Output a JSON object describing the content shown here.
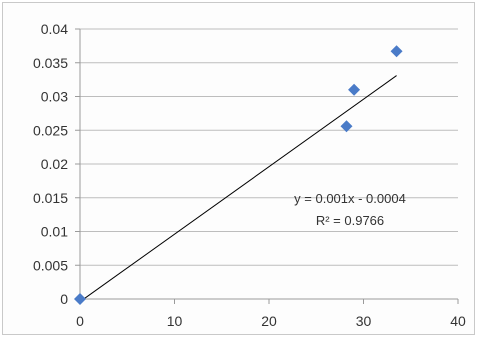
{
  "chart_data": {
    "type": "scatter",
    "title": "",
    "xlabel": "",
    "ylabel": "",
    "xlim": [
      0,
      40
    ],
    "ylim": [
      0,
      0.04
    ],
    "x_ticks": [
      "0",
      "10",
      "20",
      "30",
      "40"
    ],
    "y_ticks": [
      "0",
      "0.005",
      "0.01",
      "0.015",
      "0.02",
      "0.025",
      "0.03",
      "0.035",
      "0.04"
    ],
    "grid": "horizontal",
    "legend": "none",
    "series": [
      {
        "points": [
          {
            "x": 0,
            "y": 0
          },
          {
            "x": 28.2,
            "y": 0.0256
          },
          {
            "x": 29.0,
            "y": 0.031
          },
          {
            "x": 33.5,
            "y": 0.0367
          }
        ],
        "marker": "diamond",
        "color": "#4a7bc8"
      }
    ],
    "trendline": {
      "type": "linear",
      "slope": 0.001,
      "intercept": -0.0004,
      "x_range": [
        0,
        33.5
      ],
      "color": "#000000"
    },
    "annotations": {
      "equation": "y = 0.001x - 0.0004",
      "r_squared": "R² = 0.9766"
    }
  }
}
